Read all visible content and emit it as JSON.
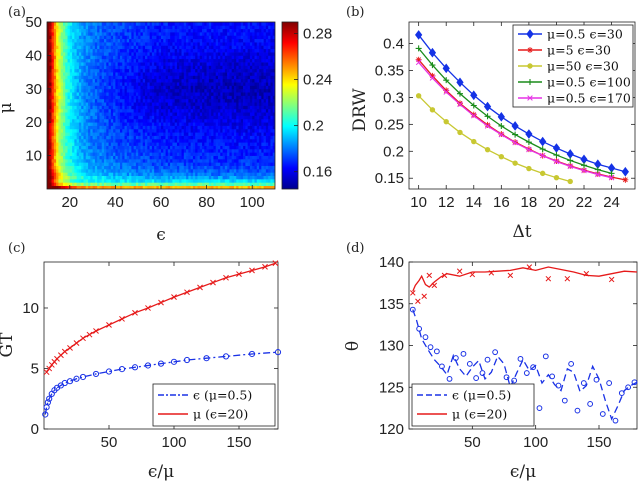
{
  "chart_data": [
    {
      "type": "heatmap",
      "panel_label": "(a)",
      "xlabel": "ϵ",
      "ylabel": "μ",
      "xlim": [
        10,
        110
      ],
      "ylim": [
        0,
        50
      ],
      "xticks": [
        20,
        40,
        60,
        80,
        100
      ],
      "yticks": [
        10,
        20,
        30,
        40,
        50
      ],
      "colorbar": {
        "range": [
          0.145,
          0.29
        ],
        "ticks": [
          0.16,
          0.2,
          0.24,
          0.28
        ],
        "tick_labels": [
          "0.16",
          "0.2",
          "0.24",
          "0.28"
        ],
        "colormap": "jet"
      },
      "description_values": "High values (~0.28) for small ϵ (<15) and near μ<2; low values (~0.16) for large ϵ and μ between 15 and 45."
    },
    {
      "type": "line",
      "panel_label": "(b)",
      "xlabel": "Δt",
      "ylabel": "DRW",
      "xlim": [
        9.3,
        25.7
      ],
      "ylim": [
        0.13,
        0.44
      ],
      "xticks": [
        10,
        12,
        14,
        16,
        18,
        20,
        22,
        24
      ],
      "yticks": [
        0.15,
        0.2,
        0.25,
        0.3,
        0.35,
        0.4
      ],
      "legend_position": "top-right",
      "series": [
        {
          "name": "μ=0.5 ϵ=30",
          "color": "#1432e6",
          "marker": "diamond",
          "x": [
            10,
            11,
            12,
            13,
            14,
            15,
            16,
            17,
            18,
            19,
            20,
            21,
            22,
            23,
            24,
            25
          ],
          "values": [
            0.416,
            0.383,
            0.354,
            0.328,
            0.304,
            0.283,
            0.264,
            0.247,
            0.232,
            0.218,
            0.206,
            0.195,
            0.185,
            0.176,
            0.169,
            0.162
          ]
        },
        {
          "name": "μ=5 ϵ=30",
          "color": "#e61a1a",
          "marker": "star",
          "x": [
            10,
            11,
            12,
            13,
            14,
            15,
            16,
            17,
            18,
            19,
            20,
            21,
            22,
            23,
            24,
            25
          ],
          "values": [
            0.37,
            0.34,
            0.313,
            0.289,
            0.268,
            0.249,
            0.232,
            0.217,
            0.204,
            0.192,
            0.182,
            0.173,
            0.165,
            0.158,
            0.152,
            0.147
          ]
        },
        {
          "name": "μ=50 ϵ=30",
          "color": "#c8c832",
          "marker": "circle",
          "x": [
            10,
            11,
            12,
            13,
            14,
            15,
            16,
            17,
            18,
            19,
            20,
            21
          ],
          "values": [
            0.303,
            0.277,
            0.255,
            0.235,
            0.218,
            0.203,
            0.19,
            0.178,
            0.168,
            0.159,
            0.151,
            0.144
          ]
        },
        {
          "name": "μ=0.5 ϵ=100",
          "color": "#1a8c1a",
          "marker": "plus",
          "x": [
            10,
            11,
            12,
            13,
            14,
            15,
            16,
            17,
            18,
            19,
            20,
            21,
            22,
            23,
            24
          ],
          "values": [
            0.391,
            0.36,
            0.332,
            0.307,
            0.285,
            0.265,
            0.247,
            0.231,
            0.217,
            0.204,
            0.193,
            0.183,
            0.174,
            0.166,
            0.159
          ]
        },
        {
          "name": "μ=0.5 ϵ=170",
          "color": "#e632e6",
          "marker": "x",
          "x": [
            10,
            11,
            12,
            13,
            14,
            15,
            16,
            17,
            18,
            19,
            20,
            21,
            22,
            23,
            24
          ],
          "values": [
            0.365,
            0.336,
            0.31,
            0.287,
            0.266,
            0.247,
            0.231,
            0.216,
            0.203,
            0.192,
            0.181,
            0.172,
            0.164,
            0.157,
            0.151
          ]
        }
      ]
    },
    {
      "type": "line",
      "panel_label": "(c)",
      "xlabel": "ϵ/μ",
      "ylabel": "GT",
      "xlim": [
        0,
        180
      ],
      "ylim": [
        0,
        13.8
      ],
      "xticks": [
        50,
        100,
        150
      ],
      "yticks": [
        0,
        5,
        10
      ],
      "legend_position": "bottom-right",
      "series": [
        {
          "name": "ϵ (μ=0.5)",
          "color": "#1a32e6",
          "style": "dash-dot",
          "marker": "circle",
          "x": [
            1,
            2,
            3,
            4,
            6,
            8,
            10,
            13,
            16,
            20,
            25,
            30,
            40,
            50,
            60,
            70,
            80,
            90,
            100,
            110,
            125,
            140,
            160,
            180
          ],
          "values": [
            1.2,
            1.8,
            2.2,
            2.5,
            2.9,
            3.2,
            3.4,
            3.6,
            3.8,
            3.95,
            4.15,
            4.3,
            4.55,
            4.75,
            4.95,
            5.1,
            5.25,
            5.4,
            5.55,
            5.7,
            5.85,
            6.0,
            6.2,
            6.35
          ]
        },
        {
          "name": "μ (ϵ=20)",
          "color": "#e61a1a",
          "style": "solid",
          "marker": "x",
          "x": [
            2,
            4,
            6,
            8,
            10,
            13,
            16,
            20,
            25,
            30,
            35,
            40,
            50,
            60,
            70,
            80,
            90,
            100,
            110,
            120,
            130,
            140,
            150,
            160,
            170,
            178
          ],
          "values": [
            4.7,
            5.0,
            5.3,
            5.55,
            5.8,
            6.1,
            6.4,
            6.7,
            7.1,
            7.5,
            7.8,
            8.1,
            8.6,
            9.1,
            9.6,
            10.0,
            10.45,
            10.9,
            11.3,
            11.7,
            12.1,
            12.5,
            12.8,
            13.1,
            13.4,
            13.7
          ]
        }
      ]
    },
    {
      "type": "line",
      "panel_label": "(d)",
      "xlabel": "ϵ/μ",
      "ylabel": "θ",
      "xlim": [
        0,
        180
      ],
      "ylim": [
        120,
        140
      ],
      "xticks": [
        50,
        100,
        150
      ],
      "yticks": [
        120,
        125,
        130,
        135,
        140
      ],
      "legend_position": "bottom-left",
      "series": [
        {
          "name": "ϵ (μ=0.5)",
          "color": "#1a32e6",
          "style": "dash",
          "marker": "circle",
          "x": [
            3,
            6,
            10,
            15,
            20,
            25,
            30,
            35,
            40,
            45,
            50,
            55,
            60,
            65,
            70,
            75,
            80,
            85,
            90,
            95,
            100,
            105,
            110,
            115,
            120,
            125,
            130,
            135,
            140,
            145,
            150,
            155,
            160,
            165,
            170,
            175,
            180
          ],
          "values": [
            134.3,
            133.0,
            130.8,
            129.5,
            128.3,
            127.5,
            126.5,
            128.8,
            127.2,
            126.3,
            127.4,
            128.2,
            126.0,
            126.8,
            128.7,
            127.8,
            125.0,
            126.7,
            128.3,
            127.0,
            127.6,
            125.5,
            126.5,
            125.3,
            124.6,
            127.2,
            126.8,
            124.5,
            125.2,
            127.5,
            126.0,
            123.4,
            121.2,
            122.8,
            124.6,
            125.2,
            125.6
          ],
          "markers_x": [
            3,
            8,
            13,
            17,
            22,
            26,
            32,
            37,
            43,
            48,
            53,
            58,
            62,
            68,
            73,
            77,
            83,
            88,
            93,
            98,
            103,
            108,
            113,
            118,
            123,
            128,
            133,
            138,
            143,
            148,
            153,
            158,
            163,
            168,
            173,
            178
          ],
          "markers_y": [
            134.3,
            132.0,
            131.0,
            129.8,
            129.3,
            127.5,
            126.0,
            128.5,
            129.0,
            127.8,
            126.1,
            126.7,
            128.3,
            129.2,
            124.8,
            126.2,
            125.8,
            128.4,
            126.7,
            127.4,
            122.5,
            128.7,
            126.3,
            125.2,
            123.4,
            127.8,
            122.2,
            125.5,
            123.0,
            125.9,
            121.8,
            125.5,
            121.0,
            124.3,
            125.0,
            125.6
          ]
        },
        {
          "name": "μ (ϵ=20)",
          "color": "#e61a1a",
          "style": "solid",
          "marker": "x",
          "x": [
            3,
            5,
            8,
            10,
            13,
            16,
            20,
            25,
            30,
            40,
            50,
            60,
            70,
            80,
            90,
            100,
            110,
            120,
            130,
            140,
            150,
            160,
            170,
            180
          ],
          "values": [
            136.5,
            137.2,
            137.8,
            138.3,
            137.3,
            137.0,
            137.6,
            138.2,
            138.6,
            138.3,
            138.8,
            138.8,
            138.9,
            139.0,
            139.3,
            139.0,
            139.4,
            139.1,
            138.8,
            138.4,
            138.3,
            138.6,
            138.9,
            138.8
          ],
          "markers_x": [
            3,
            7,
            12,
            16,
            20,
            28,
            40,
            50,
            65,
            80,
            95,
            110,
            125,
            140,
            160
          ],
          "markers_y": [
            136.3,
            135.3,
            135.9,
            138.4,
            137.2,
            138.4,
            138.9,
            138.5,
            138.7,
            138.4,
            139.4,
            138.0,
            138.0,
            138.6,
            137.9
          ]
        }
      ]
    }
  ]
}
